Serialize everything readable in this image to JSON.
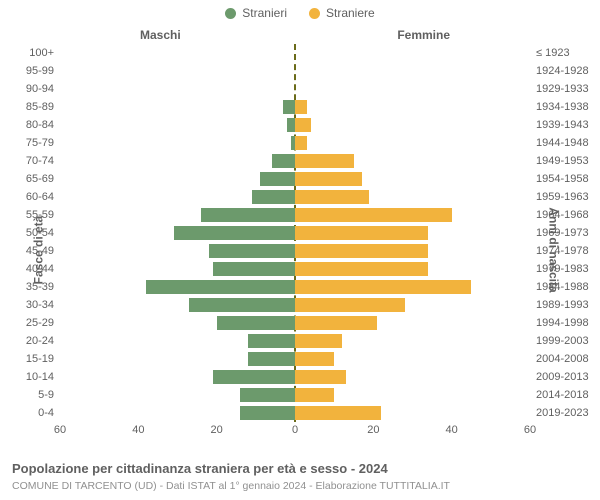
{
  "legend": {
    "male": {
      "label": "Stranieri",
      "color": "#6c9a6c"
    },
    "female": {
      "label": "Straniere",
      "color": "#f2b33d"
    }
  },
  "column_headers": {
    "left": "Maschi",
    "right": "Femmine"
  },
  "yaxis": {
    "left_title": "Fasce di età",
    "right_title": "Anni di nascita"
  },
  "xaxis": {
    "domain": 60,
    "ticks": [
      -60,
      -40,
      -20,
      0,
      20,
      40,
      60
    ],
    "tick_labels": [
      "60",
      "40",
      "20",
      "0",
      "20",
      "40",
      "60"
    ]
  },
  "plot_style": {
    "center_line_color": "#6b6b1a",
    "grid_color": "#e0e0e0",
    "label_fontsize": 11,
    "axis_title_fontsize": 12,
    "legend_fontsize": 12,
    "title_fontsize": 13,
    "subtitle_fontsize": 10.5,
    "label_color": "#606060",
    "subtitle_color": "#909090",
    "background_color": "#ffffff"
  },
  "rows": [
    {
      "age": "100+",
      "birth": "≤ 1923",
      "male": 0,
      "female": 0
    },
    {
      "age": "95-99",
      "birth": "1924-1928",
      "male": 0,
      "female": 0
    },
    {
      "age": "90-94",
      "birth": "1929-1933",
      "male": 0,
      "female": 0
    },
    {
      "age": "85-89",
      "birth": "1934-1938",
      "male": 3,
      "female": 3
    },
    {
      "age": "80-84",
      "birth": "1939-1943",
      "male": 2,
      "female": 4
    },
    {
      "age": "75-79",
      "birth": "1944-1948",
      "male": 1,
      "female": 3
    },
    {
      "age": "70-74",
      "birth": "1949-1953",
      "male": 6,
      "female": 15
    },
    {
      "age": "65-69",
      "birth": "1954-1958",
      "male": 9,
      "female": 17
    },
    {
      "age": "60-64",
      "birth": "1959-1963",
      "male": 11,
      "female": 19
    },
    {
      "age": "55-59",
      "birth": "1964-1968",
      "male": 24,
      "female": 40
    },
    {
      "age": "50-54",
      "birth": "1969-1973",
      "male": 31,
      "female": 34
    },
    {
      "age": "45-49",
      "birth": "1974-1978",
      "male": 22,
      "female": 34
    },
    {
      "age": "40-44",
      "birth": "1979-1983",
      "male": 21,
      "female": 34
    },
    {
      "age": "35-39",
      "birth": "1984-1988",
      "male": 38,
      "female": 45
    },
    {
      "age": "30-34",
      "birth": "1989-1993",
      "male": 27,
      "female": 28
    },
    {
      "age": "25-29",
      "birth": "1994-1998",
      "male": 20,
      "female": 21
    },
    {
      "age": "20-24",
      "birth": "1999-2003",
      "male": 12,
      "female": 12
    },
    {
      "age": "15-19",
      "birth": "2004-2008",
      "male": 12,
      "female": 10
    },
    {
      "age": "10-14",
      "birth": "2009-2013",
      "male": 21,
      "female": 13
    },
    {
      "age": "5-9",
      "birth": "2014-2018",
      "male": 14,
      "female": 10
    },
    {
      "age": "0-4",
      "birth": "2019-2023",
      "male": 14,
      "female": 22
    }
  ],
  "title": "Popolazione per cittadinanza straniera per età e sesso - 2024",
  "subtitle": "COMUNE DI TARCENTO (UD) - Dati ISTAT al 1° gennaio 2024 - Elaborazione TUTTITALIA.IT"
}
